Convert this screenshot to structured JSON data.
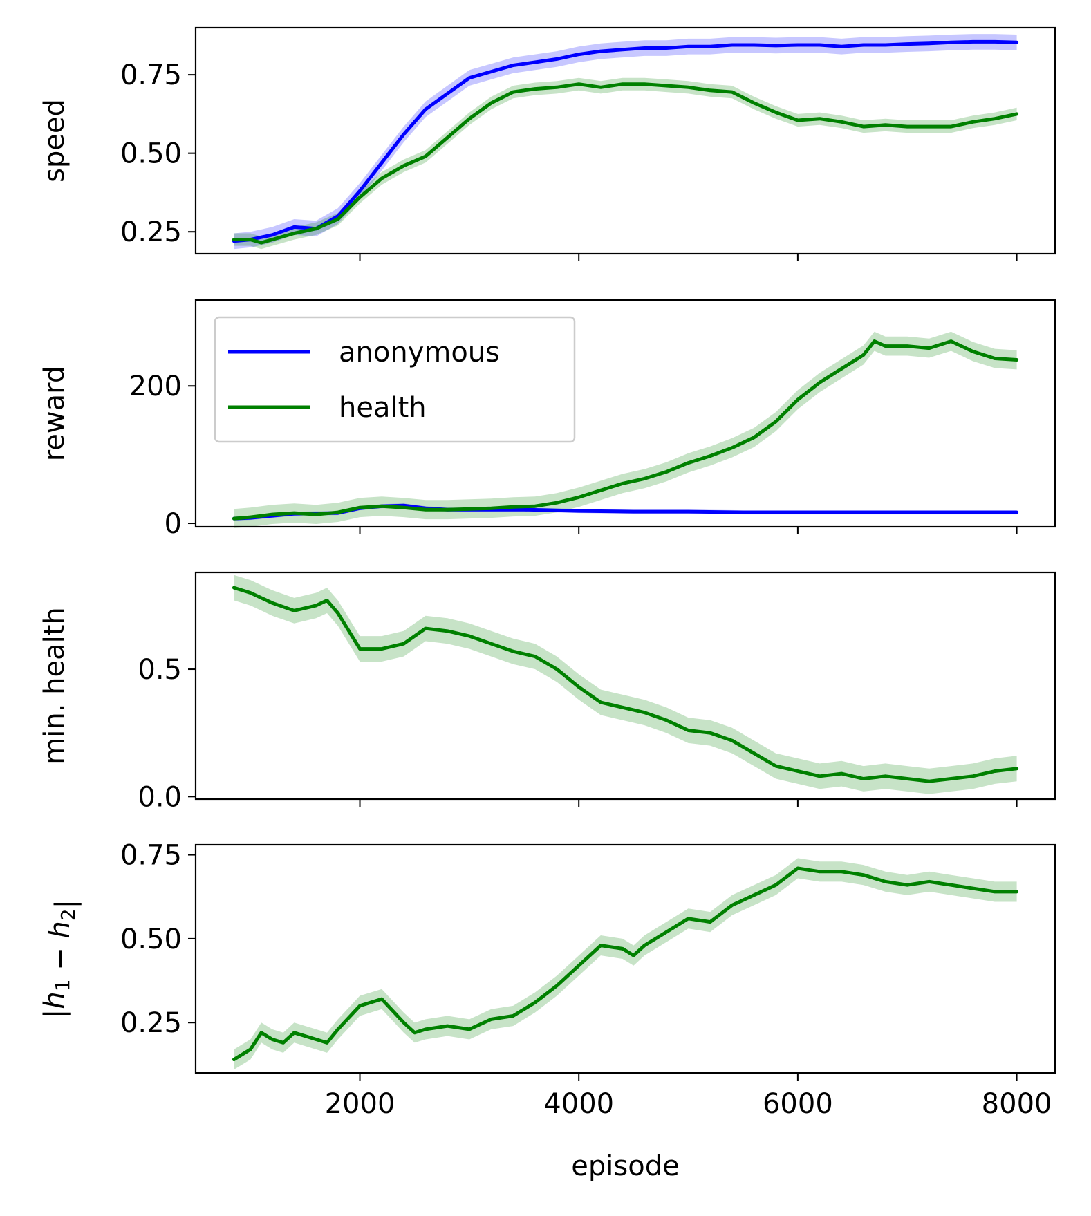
{
  "chart_data": {
    "type": "line",
    "shared_x": {
      "label": "episode",
      "xlim": [
        500,
        8350
      ],
      "ticks": [
        2000,
        4000,
        6000,
        8000
      ],
      "tick_labels": [
        "2000",
        "4000",
        "6000",
        "8000"
      ]
    },
    "legend": {
      "location": "upper-left (second panel)",
      "entries": [
        {
          "label": "anonymous",
          "color": "#0000ff"
        },
        {
          "label": "health",
          "color": "#008000"
        }
      ]
    },
    "colors": {
      "anonymous": "#0000ff",
      "health": "#008000",
      "band_anonymous": "#0000ff",
      "band_health": "#008000"
    },
    "panels": [
      {
        "id": "speed",
        "ylabel": "speed",
        "ylim": [
          0.18,
          0.9
        ],
        "yticks": [
          0.25,
          0.5,
          0.75
        ],
        "ytick_labels": [
          "0.25",
          "0.50",
          "0.75"
        ],
        "series": [
          {
            "key": "anonymous",
            "color": "#0000ff",
            "x": [
              850,
              1000,
              1200,
              1400,
              1600,
              1800,
              2000,
              2200,
              2400,
              2600,
              2800,
              3000,
              3200,
              3400,
              3600,
              3800,
              4000,
              4200,
              4400,
              4600,
              4800,
              5000,
              5200,
              5400,
              5600,
              5800,
              6000,
              6200,
              6400,
              6600,
              6800,
              7000,
              7200,
              7400,
              7600,
              7800,
              8000
            ],
            "y": [
              0.22,
              0.225,
              0.24,
              0.265,
              0.26,
              0.3,
              0.38,
              0.47,
              0.56,
              0.64,
              0.69,
              0.74,
              0.76,
              0.78,
              0.79,
              0.8,
              0.815,
              0.825,
              0.83,
              0.835,
              0.835,
              0.84,
              0.84,
              0.845,
              0.845,
              0.843,
              0.845,
              0.845,
              0.84,
              0.845,
              0.845,
              0.848,
              0.85,
              0.853,
              0.855,
              0.855,
              0.853
            ],
            "band": 0.025
          },
          {
            "key": "health",
            "color": "#008000",
            "x": [
              850,
              1000,
              1100,
              1200,
              1400,
              1600,
              1800,
              2000,
              2200,
              2400,
              2600,
              2800,
              3000,
              3200,
              3400,
              3600,
              3800,
              4000,
              4200,
              4400,
              4600,
              4800,
              5000,
              5200,
              5400,
              5600,
              5800,
              6000,
              6200,
              6400,
              6600,
              6800,
              7000,
              7200,
              7400,
              7600,
              7800,
              8000
            ],
            "y": [
              0.225,
              0.225,
              0.215,
              0.225,
              0.245,
              0.26,
              0.29,
              0.36,
              0.42,
              0.46,
              0.49,
              0.55,
              0.61,
              0.66,
              0.695,
              0.705,
              0.71,
              0.72,
              0.71,
              0.72,
              0.72,
              0.715,
              0.71,
              0.7,
              0.695,
              0.66,
              0.63,
              0.605,
              0.61,
              0.6,
              0.585,
              0.59,
              0.585,
              0.585,
              0.585,
              0.6,
              0.61,
              0.625
            ],
            "band": 0.02
          }
        ]
      },
      {
        "id": "reward",
        "ylabel": "reward",
        "ylim": [
          -5,
          325
        ],
        "yticks": [
          0,
          200
        ],
        "ytick_labels": [
          "0",
          "200"
        ],
        "series": [
          {
            "key": "anonymous",
            "color": "#0000ff",
            "x": [
              850,
              1000,
              1400,
              1800,
              2000,
              2200,
              2400,
              2600,
              2800,
              3000,
              3500,
              4000,
              4500,
              5000,
              5500,
              6000,
              6500,
              7000,
              7500,
              8000
            ],
            "y": [
              7,
              8,
              14,
              15,
              22,
              25,
              26,
              22,
              20,
              20,
              20,
              18,
              17,
              17,
              16,
              16,
              16,
              16,
              16,
              16
            ],
            "band": 3
          },
          {
            "key": "health",
            "color": "#008000",
            "x": [
              850,
              1000,
              1200,
              1400,
              1600,
              1800,
              2000,
              2200,
              2400,
              2600,
              2800,
              3000,
              3200,
              3400,
              3600,
              3800,
              4000,
              4200,
              4400,
              4600,
              4800,
              5000,
              5200,
              5400,
              5600,
              5800,
              6000,
              6200,
              6400,
              6600,
              6700,
              6800,
              7000,
              7200,
              7400,
              7600,
              7800,
              8000
            ],
            "y": [
              7,
              9,
              13,
              15,
              13,
              16,
              23,
              25,
              23,
              20,
              20,
              21,
              22,
              24,
              25,
              30,
              38,
              48,
              58,
              65,
              75,
              88,
              98,
              110,
              125,
              148,
              180,
              205,
              225,
              245,
              265,
              258,
              258,
              255,
              265,
              250,
              240,
              238
            ],
            "band": 14
          }
        ]
      },
      {
        "id": "min_health",
        "ylabel": "min. health",
        "ylim": [
          -0.01,
          0.88
        ],
        "yticks": [
          0.0,
          0.5
        ],
        "ytick_labels": [
          "0.0",
          "0.5"
        ],
        "series": [
          {
            "key": "health",
            "color": "#008000",
            "x": [
              850,
              1000,
              1200,
              1400,
              1600,
              1700,
              1800,
              2000,
              2200,
              2400,
              2600,
              2800,
              3000,
              3200,
              3400,
              3600,
              3800,
              4000,
              4200,
              4400,
              4600,
              4800,
              5000,
              5200,
              5400,
              5600,
              5800,
              6000,
              6200,
              6400,
              6600,
              6800,
              7000,
              7200,
              7400,
              7600,
              7800,
              8000
            ],
            "y": [
              0.82,
              0.8,
              0.76,
              0.73,
              0.75,
              0.77,
              0.72,
              0.58,
              0.58,
              0.6,
              0.66,
              0.65,
              0.63,
              0.6,
              0.57,
              0.55,
              0.5,
              0.43,
              0.37,
              0.35,
              0.33,
              0.3,
              0.26,
              0.25,
              0.22,
              0.17,
              0.12,
              0.1,
              0.08,
              0.09,
              0.07,
              0.08,
              0.07,
              0.06,
              0.07,
              0.08,
              0.1,
              0.11
            ],
            "band": 0.05
          }
        ]
      },
      {
        "id": "h_diff",
        "ylabel": "|h1 − h2|",
        "ylim": [
          0.1,
          0.78
        ],
        "yticks": [
          0.25,
          0.5,
          0.75
        ],
        "ytick_labels": [
          "0.25",
          "0.50",
          "0.75"
        ],
        "series": [
          {
            "key": "health",
            "color": "#008000",
            "x": [
              850,
              1000,
              1100,
              1200,
              1300,
              1400,
              1600,
              1700,
              1800,
              2000,
              2200,
              2400,
              2500,
              2600,
              2800,
              3000,
              3200,
              3400,
              3600,
              3800,
              4000,
              4200,
              4400,
              4500,
              4600,
              4800,
              5000,
              5200,
              5400,
              5600,
              5800,
              6000,
              6200,
              6400,
              6600,
              6800,
              7000,
              7200,
              7400,
              7600,
              7800,
              8000
            ],
            "y": [
              0.14,
              0.17,
              0.22,
              0.2,
              0.19,
              0.22,
              0.2,
              0.19,
              0.23,
              0.3,
              0.32,
              0.25,
              0.22,
              0.23,
              0.24,
              0.23,
              0.26,
              0.27,
              0.31,
              0.36,
              0.42,
              0.48,
              0.47,
              0.45,
              0.48,
              0.52,
              0.56,
              0.55,
              0.6,
              0.63,
              0.66,
              0.71,
              0.7,
              0.7,
              0.69,
              0.67,
              0.66,
              0.67,
              0.66,
              0.65,
              0.64,
              0.64
            ],
            "band": 0.03
          }
        ]
      }
    ]
  }
}
